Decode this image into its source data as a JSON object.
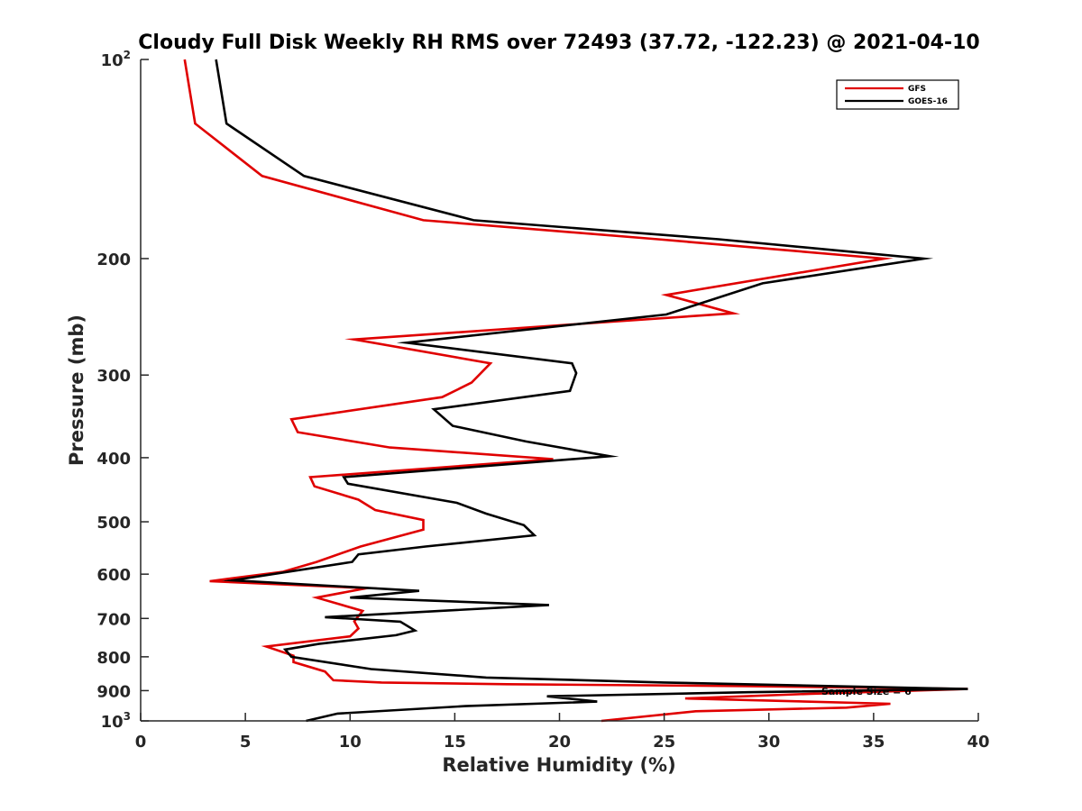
{
  "chart_data": {
    "type": "line",
    "title": "Cloudy Full Disk Weekly RH RMS over 72493 (37.72, -122.23) @ 2021-04-10",
    "xlabel": "Relative Humidity (%)",
    "ylabel": "Pressure (mb)",
    "xlim": [
      0,
      40
    ],
    "ylim": [
      100,
      1000
    ],
    "y_scale": "log",
    "y_reversed": true,
    "x_ticks": [
      "0",
      "5",
      "10",
      "15",
      "20",
      "25",
      "30",
      "35",
      "40"
    ],
    "y_ticks": [
      {
        "value": 100,
        "base": "10",
        "exp": "2"
      },
      {
        "value": 200,
        "label": "200"
      },
      {
        "value": 300,
        "label": "300"
      },
      {
        "value": 400,
        "label": "400"
      },
      {
        "value": 500,
        "label": "500"
      },
      {
        "value": 600,
        "label": "600"
      },
      {
        "value": 700,
        "label": "700"
      },
      {
        "value": 800,
        "label": "800"
      },
      {
        "value": 900,
        "label": "900"
      },
      {
        "value": 1000,
        "base": "10",
        "exp": "3"
      }
    ],
    "grid": false,
    "legend_position": "top-right",
    "annotation": "Sample Size = 6",
    "series": [
      {
        "name": "GFS",
        "color": "#e00000",
        "points": [
          [
            2.1,
            100
          ],
          [
            2.6,
            125
          ],
          [
            5.8,
            150
          ],
          [
            13.5,
            175
          ],
          [
            24.7,
            187
          ],
          [
            35.5,
            200
          ],
          [
            25.1,
            227
          ],
          [
            28.3,
            242
          ],
          [
            10.2,
            265
          ],
          [
            16.7,
            288
          ],
          [
            15.8,
            308
          ],
          [
            14.4,
            324
          ],
          [
            7.2,
            350
          ],
          [
            7.5,
            366
          ],
          [
            11.9,
            386
          ],
          [
            19.7,
            402
          ],
          [
            8.1,
            428
          ],
          [
            8.3,
            442
          ],
          [
            10.4,
            463
          ],
          [
            11.2,
            480
          ],
          [
            13.5,
            497
          ],
          [
            13.5,
            514
          ],
          [
            10.5,
            545
          ],
          [
            8.4,
            575
          ],
          [
            6.8,
            595
          ],
          [
            3.3,
            615
          ],
          [
            10.8,
            630
          ],
          [
            8.4,
            651
          ],
          [
            10.6,
            682
          ],
          [
            10.2,
            707
          ],
          [
            10.4,
            725
          ],
          [
            10.0,
            745
          ],
          [
            6.0,
            772
          ],
          [
            7.3,
            797
          ],
          [
            7.3,
            815
          ],
          [
            8.8,
            842
          ],
          [
            9.2,
            868
          ],
          [
            11.5,
            875
          ],
          [
            17.5,
            880
          ],
          [
            29.0,
            886
          ],
          [
            39.5,
            895
          ],
          [
            32.0,
            910
          ],
          [
            26.0,
            925
          ],
          [
            35.8,
            942
          ],
          [
            33.7,
            955
          ],
          [
            26.5,
            967
          ],
          [
            22.0,
            1000
          ]
        ]
      },
      {
        "name": "GOES-16",
        "color": "#000000",
        "points": [
          [
            3.6,
            100
          ],
          [
            4.1,
            125
          ],
          [
            7.8,
            150
          ],
          [
            15.9,
            175
          ],
          [
            27.6,
            187
          ],
          [
            37.4,
            200
          ],
          [
            29.7,
            218
          ],
          [
            25.1,
            243
          ],
          [
            12.7,
            268
          ],
          [
            20.6,
            288
          ],
          [
            20.8,
            298
          ],
          [
            20.5,
            317
          ],
          [
            14.0,
            338
          ],
          [
            14.9,
            358
          ],
          [
            18.4,
            378
          ],
          [
            22.4,
            398
          ],
          [
            9.7,
            428
          ],
          [
            9.9,
            438
          ],
          [
            15.1,
            468
          ],
          [
            16.5,
            486
          ],
          [
            18.3,
            506
          ],
          [
            18.8,
            524
          ],
          [
            13.6,
            545
          ],
          [
            10.4,
            560
          ],
          [
            10.1,
            575
          ],
          [
            4.4,
            613
          ],
          [
            13.3,
            636
          ],
          [
            10.0,
            651
          ],
          [
            19.5,
            668
          ],
          [
            8.8,
            697
          ],
          [
            12.4,
            708
          ],
          [
            13.1,
            730
          ],
          [
            12.2,
            742
          ],
          [
            8.5,
            765
          ],
          [
            6.9,
            780
          ],
          [
            7.2,
            800
          ],
          [
            11.0,
            835
          ],
          [
            16.5,
            860
          ],
          [
            25.0,
            875
          ],
          [
            39.5,
            895
          ],
          [
            29.0,
            905
          ],
          [
            19.4,
            918
          ],
          [
            21.8,
            935
          ],
          [
            15.5,
            950
          ],
          [
            9.4,
            975
          ],
          [
            7.9,
            1000
          ]
        ]
      }
    ]
  }
}
